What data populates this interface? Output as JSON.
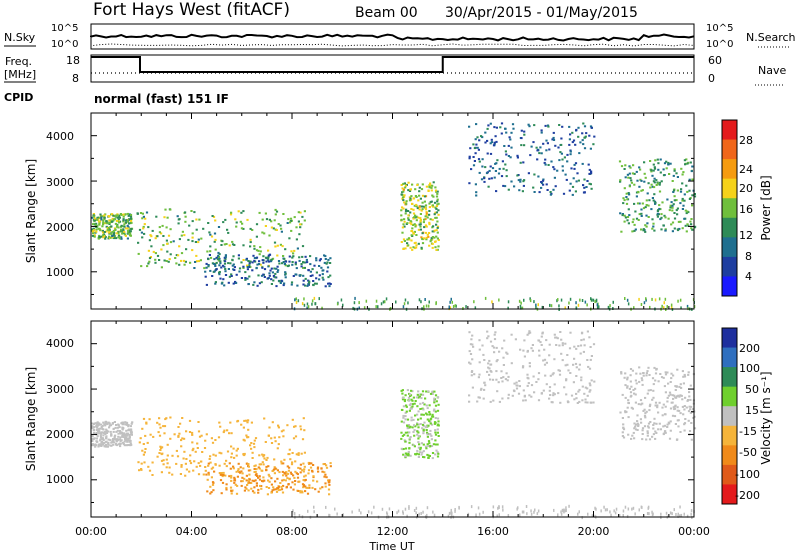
{
  "header": {
    "station": "Fort Hays West (fitACF)",
    "beam": "Beam 00",
    "date_range": "30/Apr/2015 - 01/May/2015"
  },
  "top_panels": {
    "nsky_label": "N.Sky",
    "nsky_ticks": [
      "10^5",
      "10^0"
    ],
    "nsearch_label": "N.Search",
    "nsearch_ticks": [
      "10^5",
      "10^0"
    ],
    "freq_label_line1": "Freq.",
    "freq_label_line2": "[MHz]",
    "freq_ticks": [
      "18",
      "8"
    ],
    "nave_label": "Nave",
    "nave_ticks": [
      "60",
      "0"
    ],
    "cpid_label": "CPID",
    "cpid_text": "normal (fast) 151 IF"
  },
  "colorbars": {
    "power": {
      "label": "Power [dB]",
      "ticks": [
        "28",
        "24",
        "20",
        "16",
        "12",
        "8",
        "4"
      ],
      "colors": [
        "#e41a1c",
        "#f0661a",
        "#f59b0f",
        "#f5d21a",
        "#6fbf3c",
        "#2e8b57",
        "#1f6f8f",
        "#1e3ea0",
        "#1a1aff"
      ]
    },
    "velocity": {
      "label": "Velocity [m s⁻¹]",
      "ticks": [
        "200",
        "100",
        "50",
        "15",
        "-15",
        "-50",
        "-100",
        "-200"
      ],
      "colors": [
        "#1e2f9e",
        "#2f6fbf",
        "#2e8b57",
        "#6fcf2e",
        "#c0c0c0",
        "#f5b43a",
        "#f08a1a",
        "#e05a1a",
        "#e41a1c"
      ]
    }
  },
  "chart_data": [
    {
      "type": "scatter",
      "title": "Power",
      "xlabel": "Time UT",
      "ylabel": "Slant Range [km]",
      "x_ticks": [
        "00:00",
        "04:00",
        "08:00",
        "12:00",
        "16:00",
        "20:00",
        "00:00"
      ],
      "y_ticks": [
        "4000",
        "3000",
        "2000",
        "1000"
      ],
      "xlim_hours": [
        0,
        24
      ],
      "ylim_km": [
        180,
        4500
      ],
      "echo_regions": [
        {
          "t_start": 0.0,
          "t_end": 1.6,
          "range_start": 1750,
          "range_end": 2300,
          "value_mean": 14
        },
        {
          "t_start": 1.8,
          "t_end": 8.5,
          "range_start": 1100,
          "range_end": 2400,
          "value_mean": 14
        },
        {
          "t_start": 4.5,
          "t_end": 9.5,
          "range_start": 700,
          "range_end": 1400,
          "value_mean": 7
        },
        {
          "t_start": 12.3,
          "t_end": 13.8,
          "range_start": 1500,
          "range_end": 3000,
          "value_mean": 16
        },
        {
          "t_start": 15.0,
          "t_end": 20.0,
          "range_start": 2700,
          "range_end": 4300,
          "value_mean": 7
        },
        {
          "t_start": 21.0,
          "t_end": 24.0,
          "range_start": 1900,
          "range_end": 3500,
          "value_mean": 12
        }
      ]
    },
    {
      "type": "scatter",
      "title": "Velocity",
      "xlabel": "Time UT",
      "ylabel": "Slant Range [km]",
      "x_ticks": [
        "00:00",
        "04:00",
        "08:00",
        "12:00",
        "16:00",
        "20:00",
        "00:00"
      ],
      "y_ticks": [
        "4000",
        "3000",
        "2000",
        "1000"
      ],
      "xlim_hours": [
        0,
        24
      ],
      "ylim_km": [
        180,
        4500
      ],
      "echo_regions": [
        {
          "t_start": 0.0,
          "t_end": 1.6,
          "range_start": 1750,
          "range_end": 2300,
          "value_mean": 0
        },
        {
          "t_start": 1.8,
          "t_end": 8.5,
          "range_start": 1100,
          "range_end": 2400,
          "value_mean": -45
        },
        {
          "t_start": 4.5,
          "t_end": 9.5,
          "range_start": 700,
          "range_end": 1400,
          "value_mean": -80
        },
        {
          "t_start": 12.3,
          "t_end": 13.8,
          "range_start": 1500,
          "range_end": 3000,
          "value_mean": 30
        },
        {
          "t_start": 15.0,
          "t_end": 20.0,
          "range_start": 2700,
          "range_end": 4300,
          "value_mean": 0
        },
        {
          "t_start": 21.0,
          "t_end": 24.0,
          "range_start": 1900,
          "range_end": 3500,
          "value_mean": 0
        }
      ]
    }
  ]
}
